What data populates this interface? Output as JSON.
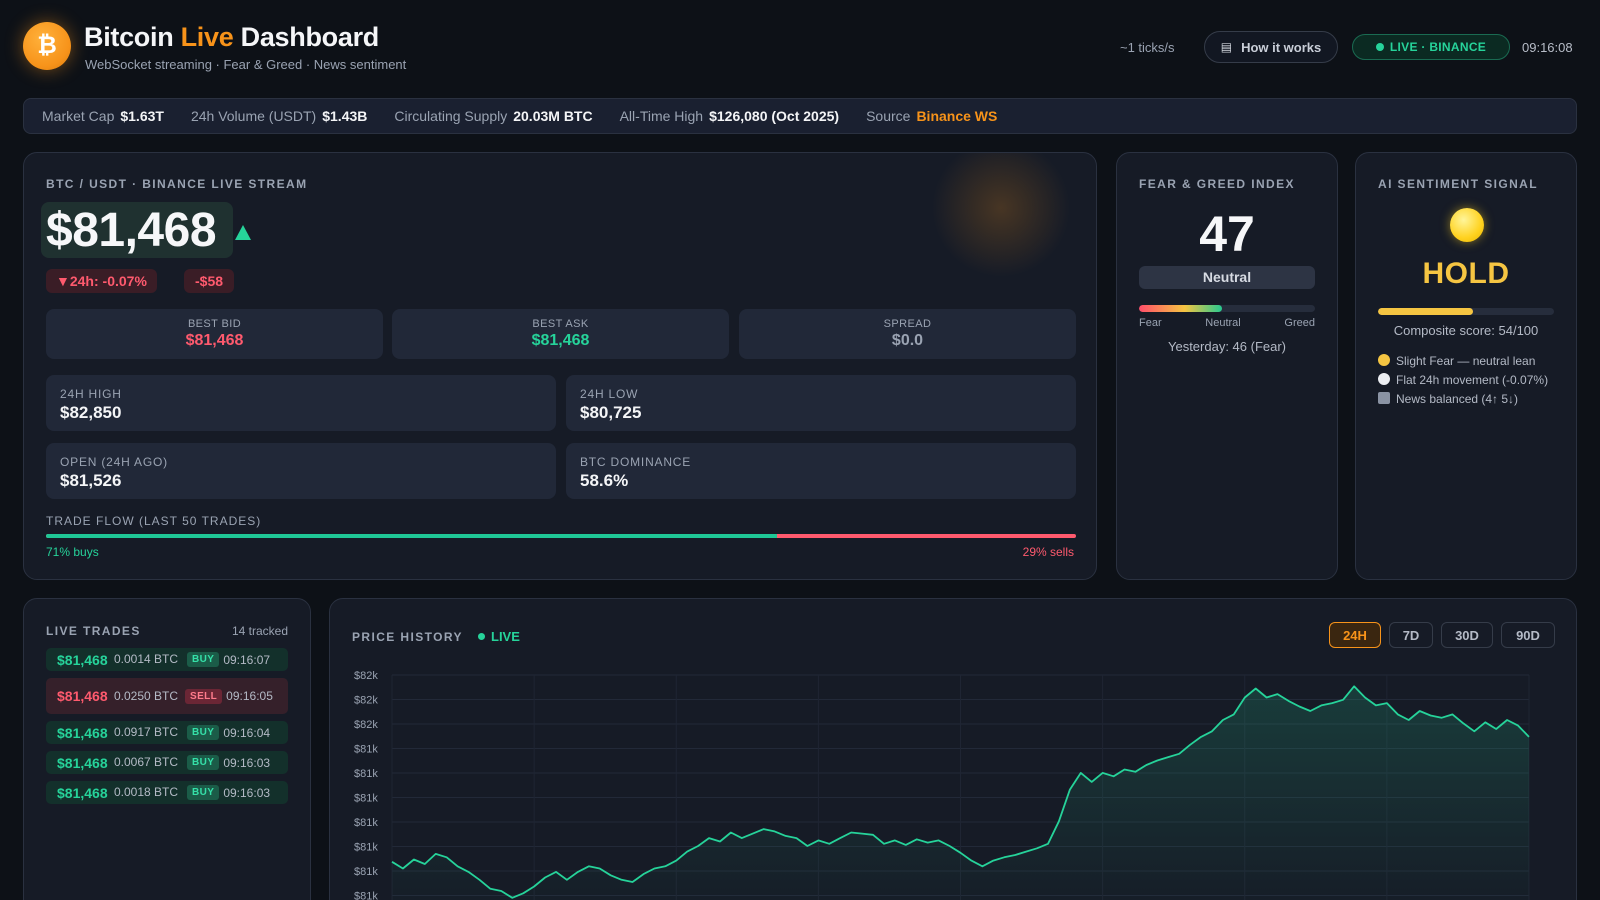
{
  "header": {
    "logo_glyph": "₿",
    "title_pre": "Bitcoin ",
    "title_accent": "Live",
    "title_post": " Dashboard",
    "subtitle": "WebSocket streaming · Fear & Greed · News sentiment",
    "tick_rate": "~1 ticks/s",
    "how_it_works": "How it works",
    "how_icon": "book-icon",
    "live_status": "LIVE · BINANCE",
    "clock": "09:16:08"
  },
  "stats": [
    {
      "label": "Market Cap",
      "value": "$1.63T"
    },
    {
      "label": "24h Volume (USDT)",
      "value": "$1.43B"
    },
    {
      "label": "Circulating Supply",
      "value": "20.03M BTC"
    },
    {
      "label": "All-Time High",
      "value": "$126,080 (Oct 2025)"
    },
    {
      "label": "Source",
      "value": "Binance WS"
    }
  ],
  "main": {
    "label": "BTC / USDT · BINANCE LIVE STREAM",
    "price": "$81,468",
    "change_24h": "▼24h: -0.07%",
    "change_abs": "-$58",
    "best_bid_label": "BEST BID",
    "best_bid": "$81,468",
    "best_ask_label": "BEST ASK",
    "best_ask": "$81,468",
    "spread_label": "SPREAD",
    "spread": "$0.0",
    "high_label": "24H HIGH",
    "high": "$82,850",
    "low_label": "24H LOW",
    "low": "$80,725",
    "open_label": "OPEN (24H AGO)",
    "open": "$81,526",
    "dominance_label": "BTC DOMINANCE",
    "dominance": "58.6%",
    "flow_label": "TRADE FLOW (LAST 50 TRADES)",
    "buy_fraction": 0.71,
    "buys_text": "71% buys",
    "sells_text": "29% sells"
  },
  "fear_greed": {
    "label": "FEAR & GREED INDEX",
    "value": "47",
    "value_fraction": 0.47,
    "classification": "Neutral",
    "scale_fear": "Fear",
    "scale_neutral": "Neutral",
    "scale_greed": "Greed",
    "yesterday": "Yesterday: 46 (Fear)"
  },
  "ai": {
    "label": "AI SENTIMENT SIGNAL",
    "signal": "HOLD",
    "score_fraction": 0.54,
    "score_text": "Composite score: 54/100",
    "reasons": [
      {
        "icon": "slight-fear-emoji-icon",
        "text": "Slight Fear — neutral lean"
      },
      {
        "icon": "white-circle-icon",
        "text": "Flat 24h movement (-0.07%)"
      },
      {
        "icon": "newspaper-icon",
        "text": "News balanced (4↑ 5↓)"
      }
    ]
  },
  "trades": {
    "label": "LIVE TRADES",
    "count": "14 tracked",
    "rows": [
      {
        "price": "$81,468",
        "qty": "0.0014 BTC",
        "side": "BUY",
        "time": "09:16:07"
      },
      {
        "price": "$81,468",
        "qty": "0.0250 BTC",
        "side": "SELL",
        "time": "09:16:05"
      },
      {
        "price": "$81,468",
        "qty": "0.0917 BTC",
        "side": "BUY",
        "time": "09:16:04"
      },
      {
        "price": "$81,468",
        "qty": "0.0067 BTC",
        "side": "BUY",
        "time": "09:16:03"
      },
      {
        "price": "$81,468",
        "qty": "0.0018 BTC",
        "side": "BUY",
        "time": "09:16:03"
      }
    ]
  },
  "history": {
    "label": "PRICE HISTORY",
    "live": "LIVE",
    "ranges": [
      "24H",
      "7D",
      "30D",
      "90D"
    ],
    "active_range": "24H"
  },
  "colors": {
    "accent": "#f7931a",
    "up": "#26d39a",
    "down": "#ff5a6e",
    "hold": "#f5c542"
  },
  "chart_data": {
    "type": "line",
    "title": "PRICE HISTORY",
    "ylim": [
      80700,
      82700
    ],
    "y_tick_labels": [
      "$82k",
      "$82k",
      "$82k",
      "$81k",
      "$81k",
      "$81k",
      "$81k",
      "$81k",
      "$81k",
      "$81k"
    ],
    "series": [
      {
        "values": [
          81040,
          80980,
          81060,
          81020,
          81110,
          81080,
          81000,
          80950,
          80880,
          80800,
          80780,
          80720,
          80760,
          80820,
          80900,
          80950,
          80880,
          80950,
          81000,
          80980,
          80920,
          80880,
          80860,
          80930,
          80980,
          81000,
          81050,
          81130,
          81180,
          81250,
          81220,
          81300,
          81250,
          81290,
          81330,
          81310,
          81270,
          81250,
          81180,
          81230,
          81200,
          81250,
          81300,
          81290,
          81280,
          81200,
          81230,
          81190,
          81240,
          81210,
          81230,
          81180,
          81120,
          81050,
          81000,
          81050,
          81080,
          81100,
          81130,
          81160,
          81200,
          81400,
          81680,
          81830,
          81750,
          81830,
          81800,
          81860,
          81840,
          81900,
          81940,
          81970,
          82000,
          82080,
          82150,
          82200,
          82300,
          82350,
          82500,
          82580,
          82500,
          82530,
          82470,
          82420,
          82380,
          82430,
          82450,
          82480,
          82600,
          82500,
          82430,
          82450,
          82350,
          82300,
          82380,
          82340,
          82320,
          82350,
          82270,
          82200,
          82280,
          82220,
          82300,
          82250,
          82150
        ]
      }
    ]
  }
}
